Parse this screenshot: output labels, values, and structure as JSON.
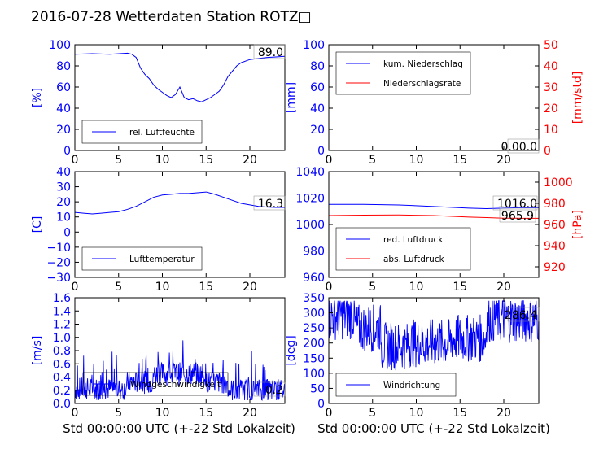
{
  "title": "2016-07-28 Wetterdaten Station ROTZ□",
  "xlabel_bottom": "Std 00:00:00 UTC (+-22 Std Lokalzeit)",
  "colors": {
    "primary": "#0000ff",
    "secondary": "#ff0000",
    "axis": "#000000"
  },
  "chart_data": [
    {
      "id": "humidity",
      "type": "line",
      "ylabel": "[%]",
      "xlim": [
        0,
        24
      ],
      "ylim": [
        0,
        100
      ],
      "xticks": [
        "0",
        "5",
        "10",
        "15",
        "20"
      ],
      "yticks": [
        "0",
        "20",
        "40",
        "60",
        "80",
        "100"
      ],
      "legend": "lower-left",
      "series": [
        {
          "name": "rel. Luftfeuchte",
          "color": "#0000ff",
          "x": [
            0,
            2,
            4,
            6,
            6.5,
            7,
            7.5,
            8,
            8.5,
            9,
            9.5,
            10,
            10.5,
            11,
            11.5,
            12,
            12.5,
            13,
            13.5,
            14,
            14.5,
            15,
            15.5,
            16,
            16.5,
            17,
            17.5,
            18,
            18.5,
            19,
            20,
            21,
            22,
            23,
            24
          ],
          "y": [
            91,
            91.5,
            91,
            92,
            91,
            88,
            78,
            72,
            68,
            62,
            58,
            55,
            52,
            50,
            53,
            60,
            50,
            48,
            49,
            47,
            46,
            48,
            50,
            53,
            56,
            62,
            70,
            75,
            80,
            83,
            86,
            87,
            88,
            88.5,
            89
          ]
        }
      ],
      "value_label": "89.0"
    },
    {
      "id": "rain",
      "type": "line",
      "ylabel": "[mm]",
      "ylabel_right": "[mm/std]",
      "xlim": [
        0,
        24
      ],
      "ylim": [
        0,
        100
      ],
      "ylim_right": [
        0,
        50
      ],
      "xticks": [
        "0",
        "5",
        "10",
        "15",
        "20"
      ],
      "yticks": [
        "0",
        "20",
        "40",
        "60",
        "80",
        "100"
      ],
      "yticks_right": [
        "0",
        "10",
        "20",
        "30",
        "40",
        "50"
      ],
      "legend": "upper-left",
      "series": [
        {
          "name": "kum. Niederschlag",
          "color": "#0000ff",
          "x": [
            0,
            24
          ],
          "y": [
            0,
            0
          ]
        },
        {
          "name": "Niederschlagsrate",
          "color": "#ff0000",
          "x": [
            0,
            24
          ],
          "y": [
            0,
            0
          ]
        }
      ],
      "value_label": "0.00.0"
    },
    {
      "id": "temperature",
      "type": "line",
      "ylabel": "[C]",
      "xlim": [
        0,
        24
      ],
      "ylim": [
        -30,
        40
      ],
      "xticks": [
        "0",
        "5",
        "10",
        "15",
        "20"
      ],
      "yticks": [
        "−30",
        "−20",
        "−10",
        "0",
        "10",
        "20",
        "30",
        "40"
      ],
      "legend": "lower-left",
      "series": [
        {
          "name": "Lufttemperatur",
          "color": "#0000ff",
          "x": [
            0,
            1,
            2,
            3,
            4,
            5,
            6,
            7,
            8,
            9,
            10,
            11,
            12,
            13,
            14,
            15,
            16,
            17,
            18,
            19,
            20,
            21,
            22,
            23,
            24
          ],
          "y": [
            13,
            12.5,
            12,
            12.5,
            13,
            13.5,
            15,
            17,
            20,
            23,
            24.5,
            25,
            25.5,
            25.5,
            26,
            26.5,
            25,
            23,
            21,
            19,
            18,
            17,
            16.5,
            16.3,
            16.3
          ]
        }
      ],
      "value_label": "16.3"
    },
    {
      "id": "pressure",
      "type": "line",
      "ylabel": "",
      "ylabel_right": "[hPa]",
      "xlim": [
        0,
        24
      ],
      "ylim": [
        950,
        1050
      ],
      "ylim_right": [
        910,
        1010
      ],
      "xticks": [
        "0",
        "5",
        "10",
        "15",
        "20"
      ],
      "yticks": [
        "960",
        "980",
        "1000",
        "1020",
        "1040"
      ],
      "yticks_right": [
        "920",
        "940",
        "960",
        "980",
        "1000"
      ],
      "legend": "lower-left",
      "series": [
        {
          "name": "red. Luftdruck",
          "color": "#0000ff",
          "x": [
            0,
            4,
            8,
            12,
            16,
            18,
            20,
            22,
            24
          ],
          "y": [
            1019,
            1019,
            1018.5,
            1017,
            1015.5,
            1015,
            1015.5,
            1016,
            1016
          ]
        },
        {
          "name": "abs. Luftdruck",
          "color": "#ff0000",
          "x": [
            0,
            4,
            8,
            12,
            16,
            18,
            20,
            22,
            24
          ],
          "y": [
            968.5,
            968.8,
            969,
            968.5,
            967,
            966.5,
            966,
            965.9,
            965.9
          ]
        }
      ],
      "value_label_1": "1016.0",
      "value_label_2": "965.9"
    },
    {
      "id": "windspeed",
      "type": "line",
      "ylabel": "[m/s]",
      "xlim": [
        0,
        24
      ],
      "ylim": [
        0,
        1.6
      ],
      "xticks": [
        "0",
        "5",
        "10",
        "15",
        "20"
      ],
      "yticks": [
        "0.0",
        "0.2",
        "0.4",
        "0.6",
        "0.8",
        "1.0",
        "1.2",
        "1.4",
        "1.6"
      ],
      "legend": "lower-left",
      "series": [
        {
          "name": "Windgeschwindigkeit",
          "color": "#0000ff",
          "noise": "speed"
        }
      ],
      "value_label": "0.2"
    },
    {
      "id": "winddir",
      "type": "line",
      "ylabel": "[deg]",
      "xlim": [
        0,
        24
      ],
      "ylim": [
        0,
        350
      ],
      "xticks": [
        "0",
        "5",
        "10",
        "15",
        "20"
      ],
      "yticks": [
        "0",
        "50",
        "100",
        "150",
        "200",
        "250",
        "300",
        "350"
      ],
      "legend": "lower-left",
      "series": [
        {
          "name": "Windrichtung",
          "color": "#0000ff",
          "noise": "dir"
        }
      ],
      "value_label": "286.4"
    }
  ]
}
